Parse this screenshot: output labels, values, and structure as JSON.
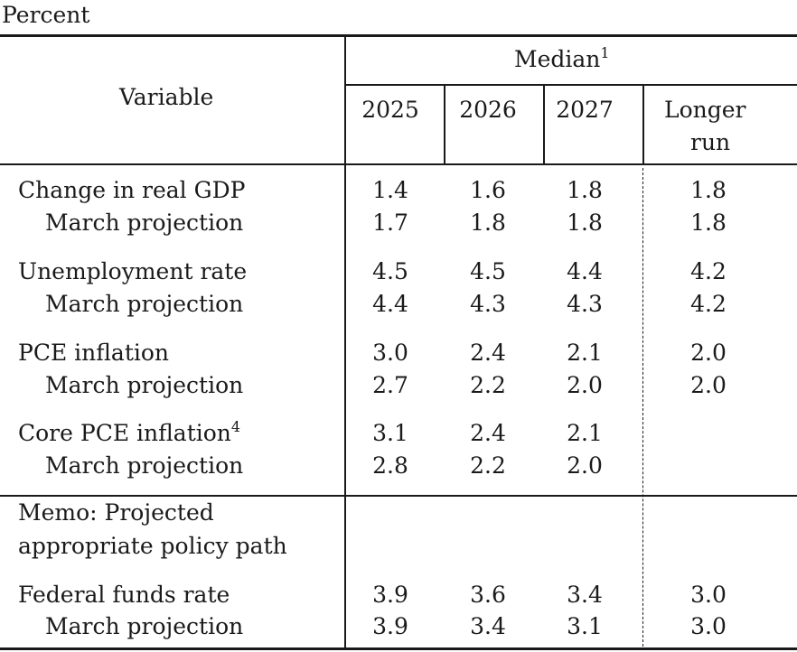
{
  "unit_label": "Percent",
  "header": {
    "variable_label": "Variable",
    "median_label": "Median",
    "median_footnote": "1",
    "columns": [
      "2025",
      "2026",
      "2027",
      "Longer",
      "run"
    ]
  },
  "rows": [
    {
      "label": "Change in real GDP",
      "footnote": "",
      "values": [
        "1.4",
        "1.6",
        "1.8",
        "1.8"
      ]
    },
    {
      "label": "March projection",
      "footnote": "",
      "values": [
        "1.7",
        "1.8",
        "1.8",
        "1.8"
      ]
    },
    {
      "label": "Unemployment rate",
      "footnote": "",
      "values": [
        "4.5",
        "4.5",
        "4.4",
        "4.2"
      ]
    },
    {
      "label": "March projection",
      "footnote": "",
      "values": [
        "4.4",
        "4.3",
        "4.3",
        "4.2"
      ]
    },
    {
      "label": "PCE inflation",
      "footnote": "",
      "values": [
        "3.0",
        "2.4",
        "2.1",
        "2.0"
      ]
    },
    {
      "label": "March projection",
      "footnote": "",
      "values": [
        "2.7",
        "2.2",
        "2.0",
        "2.0"
      ]
    },
    {
      "label": "Core PCE inflation",
      "footnote": "4",
      "values": [
        "3.1",
        "2.4",
        "2.1",
        ""
      ]
    },
    {
      "label": "March projection",
      "footnote": "",
      "values": [
        "2.8",
        "2.2",
        "2.0",
        ""
      ]
    }
  ],
  "memo": {
    "line1": "Memo: Projected",
    "line2": "appropriate policy path"
  },
  "memo_rows": [
    {
      "label": "Federal funds rate",
      "values": [
        "3.9",
        "3.6",
        "3.4",
        "3.0"
      ]
    },
    {
      "label": "March projection",
      "values": [
        "3.9",
        "3.4",
        "3.1",
        "3.0"
      ]
    }
  ]
}
